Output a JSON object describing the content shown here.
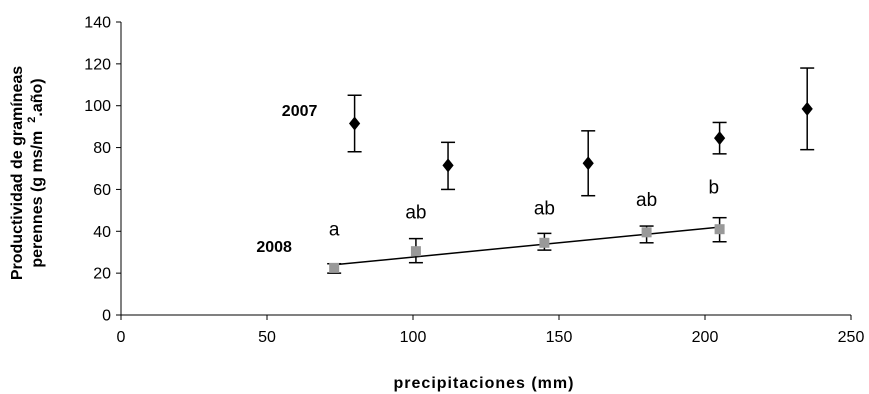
{
  "chart_data": {
    "type": "scatter",
    "title": "",
    "xlabel": "precipitaciones (mm)",
    "ylabel_line1": "Productividad de gramíneas",
    "ylabel_line2": "perennes (g ms/m",
    "ylabel_sup": "2",
    "ylabel_end": ".año)",
    "xlim": [
      0,
      250
    ],
    "ylim": [
      0,
      140
    ],
    "xticks": [
      "0",
      "50",
      "100",
      "150",
      "200",
      "250"
    ],
    "yticks": [
      "0",
      "20",
      "40",
      "60",
      "80",
      "100",
      "120",
      "140"
    ],
    "grid": false,
    "series": [
      {
        "name": "2007",
        "marker": "diamond",
        "color": "#000000",
        "points": [
          {
            "x": 80,
            "y": 91.5,
            "err_low": 78,
            "err_high": 105
          },
          {
            "x": 112,
            "y": 71.5,
            "err_low": 60,
            "err_high": 82.5
          },
          {
            "x": 160,
            "y": 72.5,
            "err_low": 57,
            "err_high": 88
          },
          {
            "x": 205,
            "y": 84.5,
            "err_low": 77,
            "err_high": 92
          },
          {
            "x": 235,
            "y": 98.5,
            "err_low": 79,
            "err_high": 118
          }
        ]
      },
      {
        "name": "2008",
        "marker": "square",
        "color": "#999999",
        "points": [
          {
            "x": 73,
            "y": 22.5,
            "err_low": 20,
            "err_high": 24.5
          },
          {
            "x": 101,
            "y": 30.5,
            "err_low": 25,
            "err_high": 36.5
          },
          {
            "x": 145,
            "y": 34.5,
            "err_low": 31,
            "err_high": 39
          },
          {
            "x": 180,
            "y": 39.5,
            "err_low": 34.5,
            "err_high": 42.5
          },
          {
            "x": 205,
            "y": 41,
            "err_low": 35,
            "err_high": 46.5
          }
        ],
        "trendline": {
          "x": [
            73,
            205
          ],
          "y": [
            24,
            42
          ]
        }
      }
    ],
    "annotations": [
      {
        "text": "a",
        "x": 73,
        "y": 38
      },
      {
        "text": "ab",
        "x": 101,
        "y": 46
      },
      {
        "text": "ab",
        "x": 145,
        "y": 48
      },
      {
        "text": "ab",
        "x": 180,
        "y": 52
      },
      {
        "text": "b",
        "x": 203,
        "y": 58
      }
    ]
  }
}
